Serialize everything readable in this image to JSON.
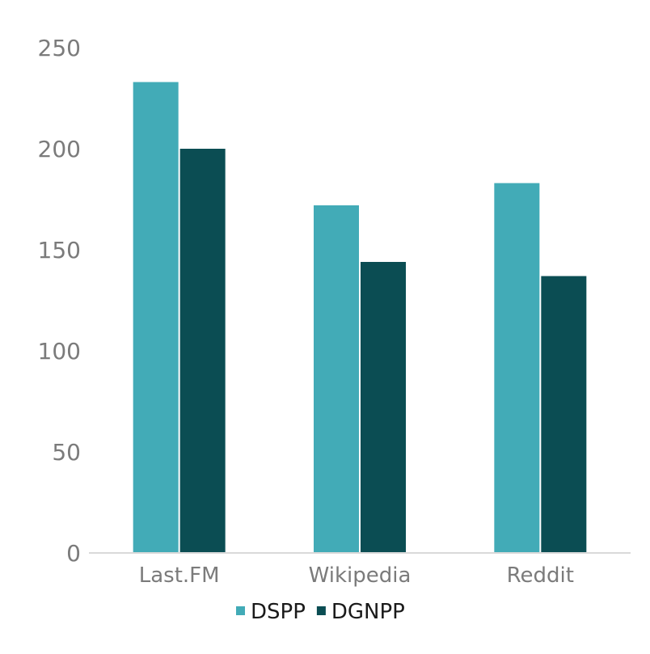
{
  "chart_data": {
    "type": "bar",
    "categories": [
      "Last.FM",
      "Wikipedia",
      "Reddit"
    ],
    "series": [
      {
        "name": "DSPP",
        "values": [
          233,
          172,
          183
        ],
        "color": "#42abb7"
      },
      {
        "name": "DGNPP",
        "values": [
          200,
          144,
          137
        ],
        "color": "#0b4d53"
      }
    ],
    "ylim": [
      0,
      250
    ],
    "yticks": [
      0,
      50,
      100,
      150,
      200,
      250
    ],
    "grid": false,
    "legend_position": "bottom",
    "title": "",
    "xlabel": "",
    "ylabel": ""
  }
}
